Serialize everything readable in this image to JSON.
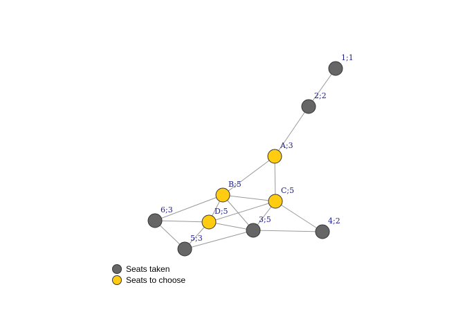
{
  "colors": {
    "taken": "#666666",
    "choose": "#FFCC11",
    "edge": "#999999",
    "label": "#1a1a8c",
    "outline": "#333333"
  },
  "nodes": [
    {
      "id": "1",
      "label": "1;1",
      "status": "taken"
    },
    {
      "id": "2",
      "label": "2;2",
      "status": "taken"
    },
    {
      "id": "A",
      "label": "A;3",
      "status": "choose"
    },
    {
      "id": "B",
      "label": "B;5",
      "status": "choose"
    },
    {
      "id": "C",
      "label": "C;5",
      "status": "choose"
    },
    {
      "id": "D",
      "label": "D;5",
      "status": "choose"
    },
    {
      "id": "6",
      "label": "6;3",
      "status": "taken"
    },
    {
      "id": "3",
      "label": "3;5",
      "status": "taken"
    },
    {
      "id": "4",
      "label": "4;2",
      "status": "taken"
    },
    {
      "id": "5",
      "label": "5;3",
      "status": "taken"
    }
  ],
  "edges": [
    [
      "1",
      "2"
    ],
    [
      "2",
      "A"
    ],
    [
      "A",
      "B"
    ],
    [
      "A",
      "C"
    ],
    [
      "B",
      "C"
    ],
    [
      "B",
      "D"
    ],
    [
      "B",
      "6"
    ],
    [
      "B",
      "3"
    ],
    [
      "C",
      "D"
    ],
    [
      "C",
      "3"
    ],
    [
      "C",
      "4"
    ],
    [
      "D",
      "6"
    ],
    [
      "D",
      "5"
    ],
    [
      "D",
      "3"
    ],
    [
      "6",
      "5"
    ],
    [
      "5",
      "3"
    ],
    [
      "3",
      "4"
    ]
  ],
  "legend": {
    "taken_label": "Seats taken",
    "choose_label": "Seats to choose"
  }
}
